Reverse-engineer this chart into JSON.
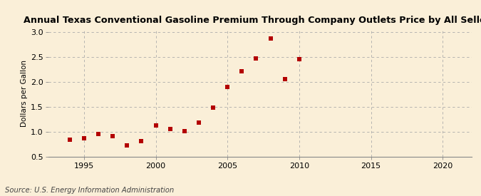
{
  "title": "Annual Texas Conventional Gasoline Premium Through Company Outlets Price by All Sellers",
  "ylabel": "Dollars per Gallon",
  "source": "Source: U.S. Energy Information Administration",
  "xlim": [
    1992.5,
    2022
  ],
  "ylim": [
    0.5,
    3.05
  ],
  "xticks": [
    1995,
    2000,
    2005,
    2010,
    2015,
    2020
  ],
  "yticks": [
    0.5,
    1.0,
    1.5,
    2.0,
    2.5,
    3.0
  ],
  "background_color": "#faefd8",
  "marker_color": "#b30000",
  "years": [
    1994,
    1995,
    1996,
    1997,
    1998,
    1999,
    2000,
    2001,
    2002,
    2003,
    2004,
    2005,
    2006,
    2007,
    2008,
    2009,
    2010
  ],
  "values": [
    0.84,
    0.87,
    0.95,
    0.91,
    0.73,
    0.82,
    1.13,
    1.05,
    1.01,
    1.18,
    1.49,
    1.9,
    2.21,
    2.47,
    2.87,
    2.05,
    2.46
  ]
}
